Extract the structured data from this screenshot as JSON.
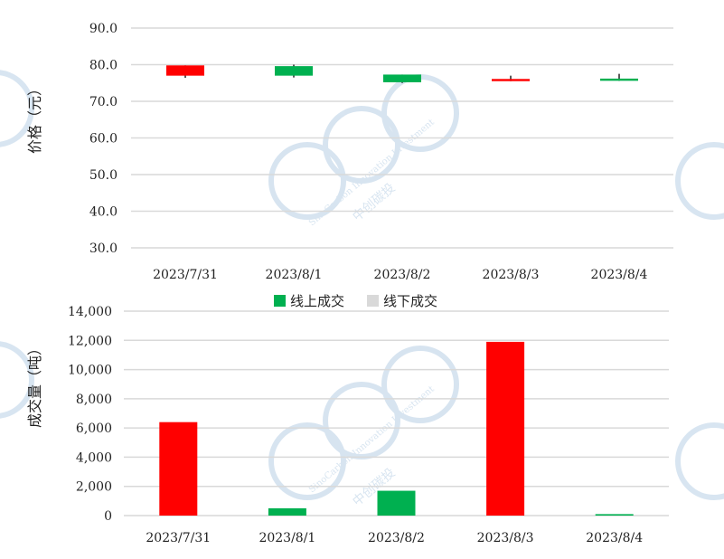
{
  "colors": {
    "up": "#ff0000",
    "down": "#00b050",
    "offline": "#d9d9d9",
    "grid": "#d9d9d9",
    "watermark": "#8fb4d6"
  },
  "watermark": {
    "brand_en": "SinoCarbon Innovation Investment",
    "brand_cn": "中创碳投"
  },
  "chart_data": [
    {
      "type": "candlestick",
      "ylabel": "价格（元）",
      "ylim": [
        30,
        90
      ],
      "yticks": [
        "90.0",
        "80.0",
        "70.0",
        "60.0",
        "50.0",
        "40.0",
        "30.0"
      ],
      "ytick_values": [
        90,
        80,
        70,
        60,
        50,
        40,
        30
      ],
      "grid": true,
      "categories": [
        "2023/7/31",
        "2023/8/1",
        "2023/8/2",
        "2023/8/3",
        "2023/8/4"
      ],
      "open": [
        77.0,
        79.6,
        77.3,
        75.5,
        76.2
      ],
      "close": [
        79.8,
        77.0,
        75.2,
        76.1,
        75.6
      ],
      "high": [
        79.8,
        80.0,
        77.3,
        77.0,
        77.5
      ],
      "low": [
        76.4,
        76.5,
        75.0,
        75.5,
        75.6
      ]
    },
    {
      "type": "bar",
      "ylabel": "成交量（吨）",
      "ylim": [
        0,
        14000
      ],
      "yticks": [
        "14,000",
        "12,000",
        "10,000",
        "8,000",
        "6,000",
        "4,000",
        "2,000",
        "0"
      ],
      "ytick_values": [
        14000,
        12000,
        10000,
        8000,
        6000,
        4000,
        2000,
        0
      ],
      "grid": true,
      "categories": [
        "2023/7/31",
        "2023/8/1",
        "2023/8/2",
        "2023/8/3",
        "2023/8/4"
      ],
      "legend_position": "top",
      "series": [
        {
          "name": "线上成交",
          "values": [
            6400,
            500,
            1700,
            11900,
            100
          ]
        },
        {
          "name": "线下成交",
          "values": [
            0,
            0,
            0,
            0,
            0
          ]
        }
      ],
      "bar_colors": [
        "#ff0000",
        "#00b050",
        "#00b050",
        "#ff0000",
        "#00b050"
      ]
    }
  ]
}
